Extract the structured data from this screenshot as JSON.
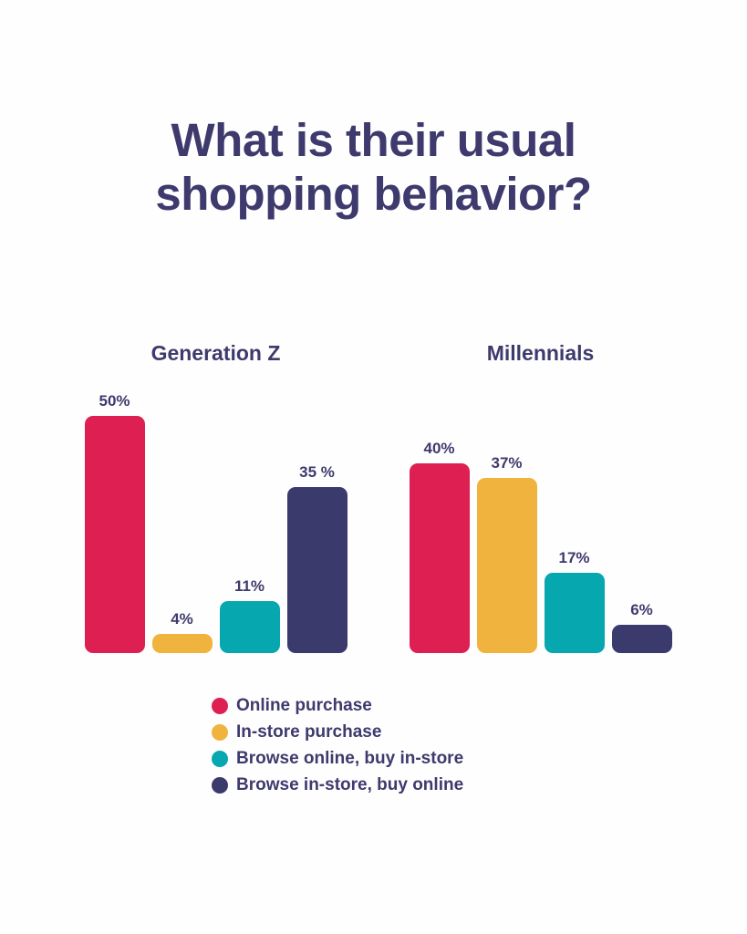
{
  "title": "What is their usual shopping behavior?",
  "colors": {
    "background": "#fefefe",
    "text": "#3e3a6d",
    "online_purchase": "#de1f52",
    "in_store_purchase": "#f0b43e",
    "browse_online_buy_in_store": "#07a7b0",
    "browse_in_store_buy_online": "#3b3a6d"
  },
  "chart_data": {
    "type": "bar",
    "title": "What is their usual shopping behavior?",
    "categories": [
      "Generation Z",
      "Millennials"
    ],
    "series": [
      {
        "name": "Online purchase",
        "color": "#de1f52",
        "values": [
          50,
          40
        ]
      },
      {
        "name": "In-store purchase",
        "color": "#f0b43e",
        "values": [
          4,
          37
        ]
      },
      {
        "name": "Browse online, buy in-store",
        "color": "#07a7b0",
        "values": [
          11,
          17
        ]
      },
      {
        "name": "Browse in-store, buy online",
        "color": "#3b3a6d",
        "values": [
          35,
          6
        ]
      }
    ],
    "value_labels": [
      [
        "50%",
        "4%",
        "11%",
        "35 %"
      ],
      [
        "40%",
        "37%",
        "17%",
        "6%"
      ]
    ],
    "unit": "%",
    "ylim": [
      0,
      50
    ],
    "grid": false,
    "axes_visible": false,
    "legend_position": "bottom"
  }
}
